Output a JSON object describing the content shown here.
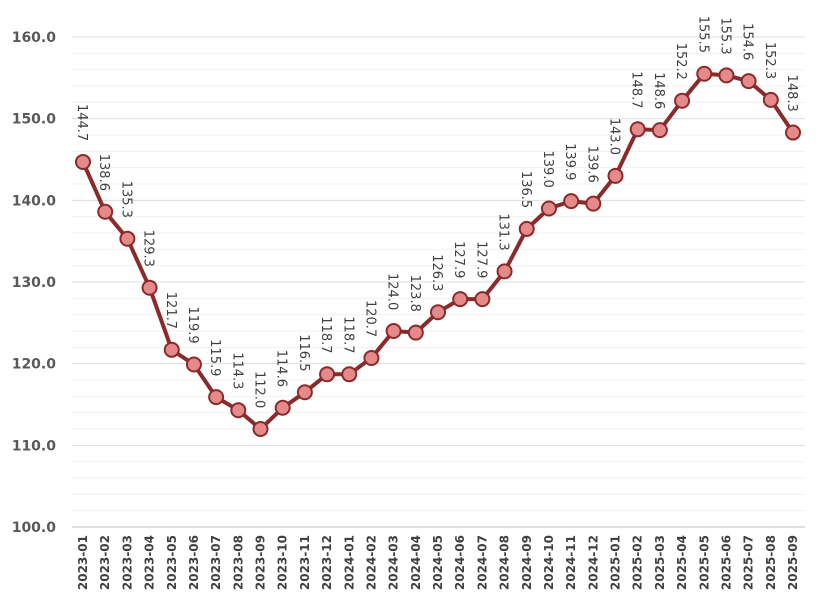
{
  "chart_data": {
    "type": "line",
    "title": "",
    "xlabel": "",
    "ylabel": "",
    "ylim": [
      100,
      160
    ],
    "yticks": [
      "100.0",
      "110.0",
      "120.0",
      "130.0",
      "140.0",
      "150.0",
      "160.0"
    ],
    "grid": true,
    "legend": "none",
    "colors": {
      "line": "#8B2A2A",
      "marker_fill": "#E58A8A",
      "marker_edge": "#8B2A2A",
      "grid": "#E6E6E6"
    },
    "categories": [
      "2023-01",
      "2023-02",
      "2023-03",
      "2023-04",
      "2023-05",
      "2023-06",
      "2023-07",
      "2023-08",
      "2023-09",
      "2023-10",
      "2023-11",
      "2023-12",
      "2024-01",
      "2024-02",
      "2024-03",
      "2024-04",
      "2024-05",
      "2024-06",
      "2024-07",
      "2024-08",
      "2024-09",
      "2024-10",
      "2024-11",
      "2024-12",
      "2025-01",
      "2025-02",
      "2025-03",
      "2025-04",
      "2025-05",
      "2025-06",
      "2025-07",
      "2025-08",
      "2025-09"
    ],
    "values": [
      144.7,
      138.6,
      135.3,
      129.3,
      121.7,
      119.9,
      115.9,
      114.3,
      112.0,
      114.6,
      116.5,
      118.7,
      118.7,
      120.7,
      124.0,
      123.8,
      126.3,
      127.9,
      127.9,
      131.3,
      136.5,
      139.0,
      139.9,
      139.6,
      143.0,
      148.7,
      148.6,
      152.2,
      155.5,
      155.3,
      154.6,
      152.3,
      148.3
    ],
    "data_labels": [
      "144.7",
      "138.6",
      "135.3",
      "129.3",
      "121.7",
      "119.9",
      "115.9",
      "114.3",
      "112.0",
      "114.6",
      "116.5",
      "118.7",
      "118.7",
      "120.7",
      "124.0",
      "123.8",
      "126.3",
      "127.9",
      "127.9",
      "131.3",
      "136.5",
      "139.0",
      "139.9",
      "139.6",
      "143.0",
      "148.7",
      "148.6",
      "152.2",
      "155.5",
      "155.3",
      "154.6",
      "152.3",
      "148.3"
    ]
  }
}
